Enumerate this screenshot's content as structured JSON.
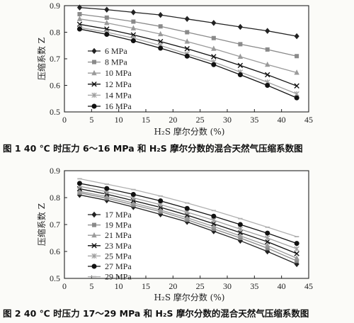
{
  "chart_data": [
    {
      "type": "line",
      "xlabel": "H₂S 摩尔分数 (%)",
      "ylabel": "压缩系数 Z",
      "xlim": [
        0,
        45
      ],
      "ylim": [
        0.5,
        0.9
      ],
      "xticks": [
        "0",
        "5",
        "10",
        "15",
        "20",
        "25",
        "30",
        "35",
        "40",
        "45"
      ],
      "yticks": [
        "0.5",
        "0.6",
        "0.7",
        "0.8",
        "0.9"
      ],
      "x": [
        2.8,
        7.8,
        12.7,
        17.7,
        22.6,
        27.5,
        32.4,
        37.4,
        42.8
      ],
      "legend_position": "left",
      "caption": "图 1   40 ℃ 时压力 6～16 MPa 和 H₂S 摩尔分数的混合天然气压缩系数图",
      "series": [
        {
          "name": "6 MPa",
          "marker": "diamond",
          "color": "#222222",
          "values": [
            0.893,
            0.885,
            0.875,
            0.865,
            0.85,
            0.835,
            0.82,
            0.805,
            0.785
          ]
        },
        {
          "name": "8 MPa",
          "marker": "square",
          "color": "#8a8a8a",
          "values": [
            0.868,
            0.855,
            0.84,
            0.822,
            0.8,
            0.778,
            0.755,
            0.735,
            0.71
          ]
        },
        {
          "name": "10 MPa",
          "marker": "triangle",
          "color": "#9a9a9a",
          "values": [
            0.85,
            0.835,
            0.815,
            0.793,
            0.765,
            0.738,
            0.708,
            0.678,
            0.648
          ]
        },
        {
          "name": "12 MPa",
          "marker": "x",
          "color": "#111111",
          "values": [
            0.83,
            0.812,
            0.79,
            0.765,
            0.738,
            0.708,
            0.675,
            0.64,
            0.598
          ]
        },
        {
          "name": "14 MPa",
          "marker": "asterisk",
          "color": "#a0a0a0",
          "values": [
            0.818,
            0.8,
            0.778,
            0.75,
            0.718,
            0.688,
            0.65,
            0.612,
            0.568
          ]
        },
        {
          "name": "16 MPa",
          "marker": "circle",
          "color": "#111111",
          "values": [
            0.812,
            0.792,
            0.768,
            0.74,
            0.71,
            0.678,
            0.64,
            0.6,
            0.553
          ]
        }
      ]
    },
    {
      "type": "line",
      "xlabel": "H₂S 摩尔分数 (%)",
      "ylabel": "压缩系数 Z",
      "xlim": [
        0,
        45
      ],
      "ylim": [
        0.5,
        0.9
      ],
      "xticks": [
        "0",
        "5",
        "10",
        "15",
        "20",
        "25",
        "30",
        "35",
        "40",
        "45"
      ],
      "yticks": [
        "0.5",
        "0.6",
        "0.7",
        "0.8",
        "0.9"
      ],
      "x": [
        2.8,
        7.8,
        12.7,
        17.7,
        22.6,
        27.5,
        32.4,
        37.4,
        42.8
      ],
      "legend_position": "left",
      "caption": "图 2   40 ℃ 时压力 17～29 MPa 和 H₂S 摩尔分数的混合天然气压缩系数图",
      "series": [
        {
          "name": "17 MPa",
          "marker": "diamond",
          "color": "#222222",
          "values": [
            0.81,
            0.79,
            0.765,
            0.738,
            0.71,
            0.675,
            0.64,
            0.6,
            0.553
          ]
        },
        {
          "name": "19 MPa",
          "marker": "square",
          "color": "#8a8a8a",
          "values": [
            0.818,
            0.798,
            0.773,
            0.748,
            0.718,
            0.684,
            0.65,
            0.612,
            0.565
          ]
        },
        {
          "name": "21 MPa",
          "marker": "triangle",
          "color": "#9a9a9a",
          "values": [
            0.823,
            0.804,
            0.78,
            0.754,
            0.725,
            0.693,
            0.658,
            0.622,
            0.575
          ]
        },
        {
          "name": "23 MPa",
          "marker": "x",
          "color": "#111111",
          "values": [
            0.833,
            0.813,
            0.789,
            0.764,
            0.735,
            0.703,
            0.67,
            0.636,
            0.592
          ]
        },
        {
          "name": "25 MPa",
          "marker": "asterisk",
          "color": "#a0a0a0",
          "values": [
            0.842,
            0.822,
            0.799,
            0.774,
            0.746,
            0.716,
            0.683,
            0.65,
            0.61
          ]
        },
        {
          "name": "27 MPa",
          "marker": "circle",
          "color": "#111111",
          "values": [
            0.853,
            0.834,
            0.812,
            0.788,
            0.76,
            0.731,
            0.7,
            0.668,
            0.63
          ]
        },
        {
          "name": "29 MPa",
          "marker": "dash",
          "color": "#b0b0b0",
          "values": [
            0.87,
            0.85,
            0.83,
            0.806,
            0.78,
            0.752,
            0.722,
            0.69,
            0.655
          ]
        }
      ]
    }
  ]
}
